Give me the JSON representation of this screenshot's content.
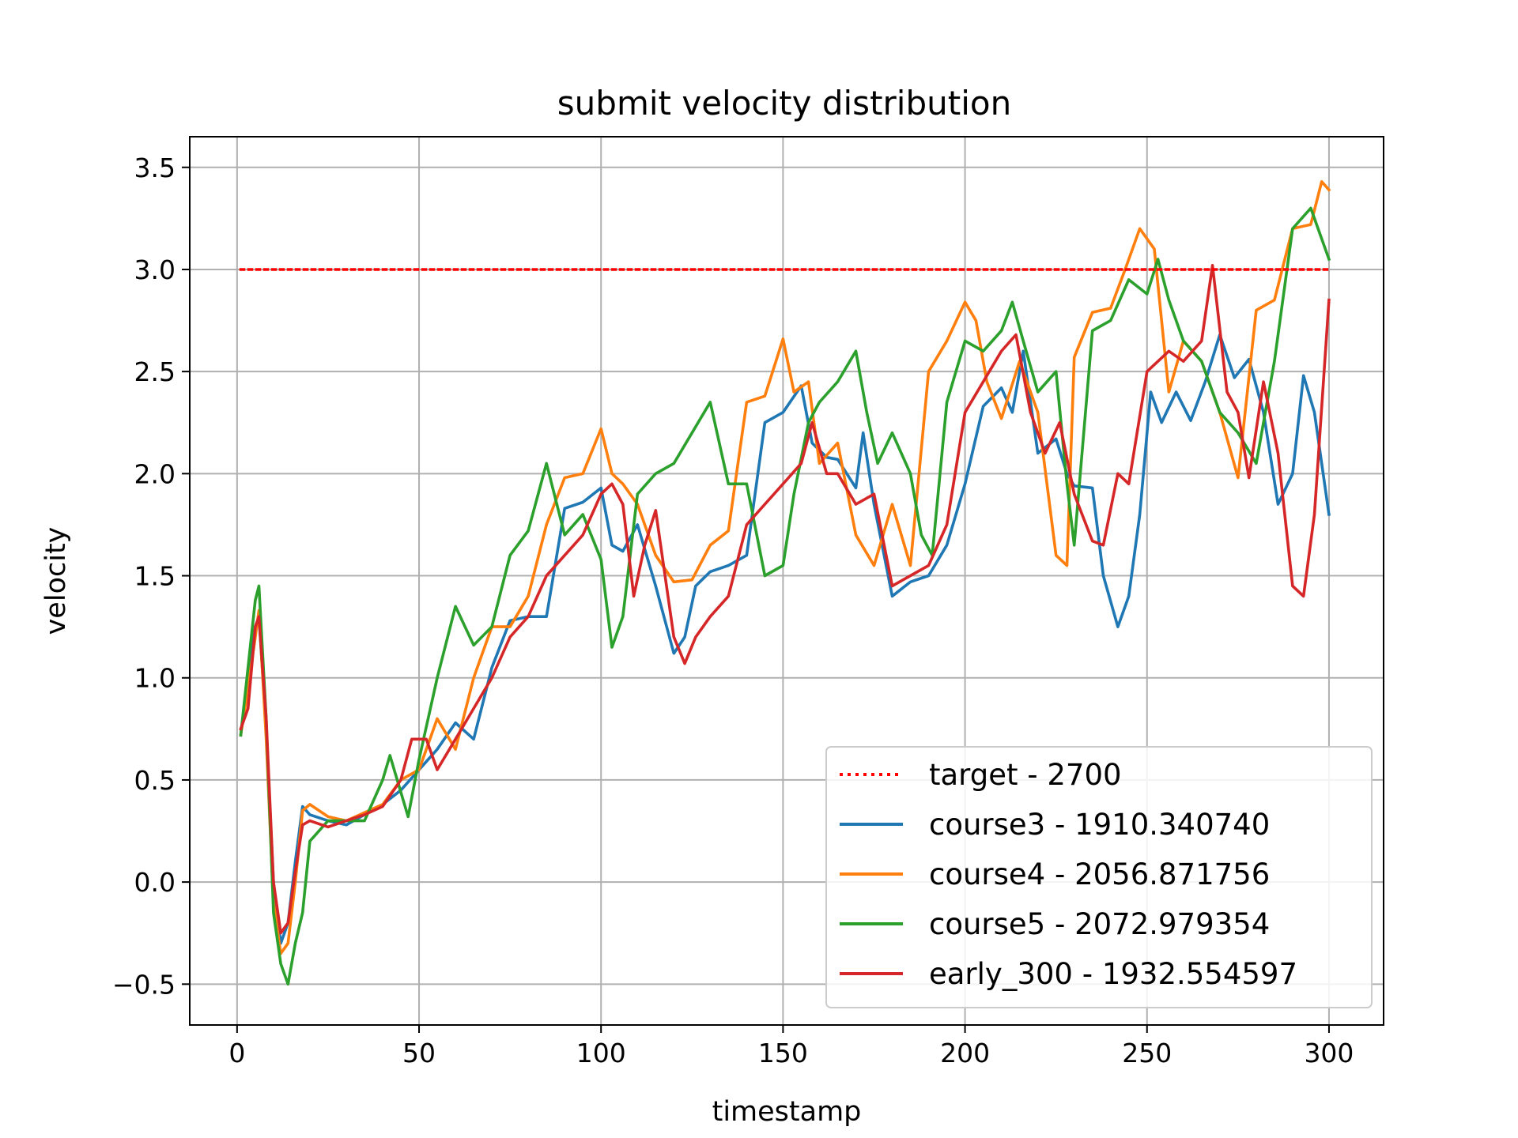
{
  "chart_data": {
    "type": "line",
    "title": "submit velocity distribution",
    "xlabel": "timestamp",
    "ylabel": "velocity",
    "xlim": [
      -13,
      315
    ],
    "ylim": [
      -0.7,
      3.65
    ],
    "xticks": [
      0,
      50,
      100,
      150,
      200,
      250,
      300
    ],
    "yticks": [
      -0.5,
      0.0,
      0.5,
      1.0,
      1.5,
      2.0,
      2.5,
      3.0,
      3.5
    ],
    "xtick_labels": [
      "0",
      "50",
      "100",
      "150",
      "200",
      "250",
      "300"
    ],
    "ytick_labels": [
      "−0.5",
      "0.0",
      "0.5",
      "1.0",
      "1.5",
      "2.0",
      "2.5",
      "3.0",
      "3.5"
    ],
    "grid": true,
    "legend_position": "lower-right",
    "series": [
      {
        "name": "target - 2700",
        "color": "#ff0000",
        "style": "dotted",
        "x": [
          1,
          300
        ],
        "y": [
          3.0,
          3.0
        ]
      },
      {
        "name": "course3 - 1910.340740",
        "color": "#1f77b4",
        "style": "solid",
        "x": [
          1,
          3,
          5,
          6,
          8,
          10,
          12,
          14,
          16,
          18,
          20,
          25,
          30,
          35,
          40,
          45,
          50,
          55,
          60,
          65,
          70,
          75,
          80,
          85,
          90,
          95,
          100,
          103,
          106,
          110,
          115,
          120,
          123,
          126,
          130,
          135,
          140,
          145,
          150,
          155,
          158,
          162,
          165,
          170,
          172,
          175,
          180,
          185,
          190,
          195,
          200,
          205,
          210,
          213,
          216,
          220,
          225,
          228,
          230,
          235,
          238,
          242,
          245,
          248,
          251,
          254,
          258,
          262,
          266,
          270,
          274,
          278,
          282,
          286,
          290,
          293,
          296,
          300
        ],
        "y": [
          0.72,
          1.0,
          1.25,
          1.3,
          0.75,
          0.0,
          -0.3,
          -0.2,
          0.1,
          0.37,
          0.33,
          0.3,
          0.28,
          0.33,
          0.38,
          0.45,
          0.55,
          0.65,
          0.78,
          0.7,
          1.05,
          1.28,
          1.3,
          1.3,
          1.83,
          1.86,
          1.93,
          1.65,
          1.62,
          1.75,
          1.45,
          1.12,
          1.2,
          1.45,
          1.52,
          1.55,
          1.6,
          2.25,
          2.3,
          2.43,
          2.15,
          2.08,
          2.07,
          1.93,
          2.2,
          1.85,
          1.4,
          1.47,
          1.5,
          1.65,
          1.95,
          2.33,
          2.42,
          2.3,
          2.6,
          2.1,
          2.17,
          2.0,
          1.94,
          1.93,
          1.5,
          1.25,
          1.4,
          1.8,
          2.4,
          2.25,
          2.4,
          2.26,
          2.45,
          2.68,
          2.47,
          2.56,
          2.3,
          1.85,
          2.0,
          2.48,
          2.3,
          1.8
        ]
      },
      {
        "name": "course4 - 2056.871756",
        "color": "#ff7f0e",
        "style": "solid",
        "x": [
          1,
          3,
          5,
          6,
          8,
          10,
          12,
          14,
          16,
          18,
          20,
          25,
          30,
          35,
          40,
          45,
          50,
          55,
          60,
          65,
          70,
          75,
          80,
          85,
          90,
          95,
          100,
          103,
          106,
          110,
          115,
          120,
          125,
          130,
          135,
          140,
          145,
          150,
          153,
          157,
          160,
          165,
          170,
          175,
          180,
          185,
          190,
          195,
          200,
          203,
          206,
          210,
          215,
          220,
          225,
          228,
          230,
          235,
          240,
          244,
          248,
          252,
          256,
          260,
          265,
          270,
          275,
          280,
          285,
          290,
          295,
          298,
          300
        ],
        "y": [
          0.72,
          0.95,
          1.2,
          1.33,
          0.7,
          -0.1,
          -0.35,
          -0.3,
          0.0,
          0.35,
          0.38,
          0.32,
          0.3,
          0.34,
          0.38,
          0.5,
          0.55,
          0.8,
          0.65,
          1.0,
          1.25,
          1.25,
          1.4,
          1.75,
          1.98,
          2.0,
          2.22,
          2.0,
          1.95,
          1.85,
          1.6,
          1.47,
          1.48,
          1.65,
          1.72,
          2.35,
          2.38,
          2.66,
          2.4,
          2.45,
          2.05,
          2.15,
          1.7,
          1.55,
          1.85,
          1.55,
          2.5,
          2.65,
          2.84,
          2.75,
          2.45,
          2.27,
          2.55,
          2.3,
          1.6,
          1.55,
          2.57,
          2.79,
          2.81,
          3.0,
          3.2,
          3.1,
          2.4,
          2.65,
          2.55,
          2.3,
          1.98,
          2.8,
          2.85,
          3.2,
          3.22,
          3.43,
          3.39
        ]
      },
      {
        "name": "course5 - 2072.979354",
        "color": "#2ca02c",
        "style": "solid",
        "x": [
          1,
          3,
          5,
          6,
          8,
          10,
          12,
          14,
          16,
          18,
          20,
          25,
          30,
          35,
          40,
          42,
          44,
          47,
          50,
          55,
          60,
          65,
          70,
          75,
          80,
          85,
          90,
          95,
          100,
          103,
          106,
          110,
          115,
          120,
          125,
          130,
          135,
          140,
          145,
          150,
          153,
          157,
          160,
          165,
          170,
          173,
          176,
          180,
          185,
          188,
          191,
          195,
          200,
          205,
          210,
          213,
          216,
          220,
          225,
          228,
          230,
          235,
          240,
          245,
          250,
          253,
          256,
          260,
          265,
          270,
          275,
          280,
          285,
          290,
          295,
          300
        ],
        "y": [
          0.72,
          1.05,
          1.38,
          1.45,
          0.8,
          -0.15,
          -0.4,
          -0.5,
          -0.3,
          -0.15,
          0.2,
          0.3,
          0.3,
          0.3,
          0.5,
          0.62,
          0.5,
          0.32,
          0.6,
          1.0,
          1.35,
          1.16,
          1.25,
          1.6,
          1.72,
          2.05,
          1.7,
          1.8,
          1.58,
          1.15,
          1.3,
          1.9,
          2.0,
          2.05,
          2.2,
          2.35,
          1.95,
          1.95,
          1.5,
          1.55,
          1.9,
          2.25,
          2.35,
          2.45,
          2.6,
          2.3,
          2.05,
          2.2,
          2.0,
          1.7,
          1.6,
          2.35,
          2.65,
          2.6,
          2.7,
          2.84,
          2.65,
          2.4,
          2.5,
          1.95,
          1.65,
          2.7,
          2.75,
          2.95,
          2.88,
          3.05,
          2.85,
          2.65,
          2.55,
          2.3,
          2.2,
          2.05,
          2.55,
          3.2,
          3.3,
          3.05
        ]
      },
      {
        "name": "early_300 - 1932.554597",
        "color": "#d62728",
        "style": "solid",
        "x": [
          1,
          3,
          5,
          6,
          8,
          10,
          12,
          14,
          16,
          18,
          20,
          25,
          30,
          35,
          40,
          45,
          48,
          52,
          55,
          60,
          65,
          70,
          75,
          80,
          85,
          90,
          95,
          100,
          103,
          106,
          109,
          112,
          115,
          120,
          123,
          126,
          130,
          135,
          140,
          145,
          150,
          155,
          158,
          162,
          165,
          170,
          175,
          180,
          185,
          190,
          195,
          200,
          205,
          210,
          214,
          218,
          222,
          226,
          230,
          235,
          238,
          242,
          245,
          250,
          253,
          256,
          260,
          265,
          268,
          272,
          275,
          278,
          282,
          286,
          290,
          293,
          296,
          300
        ],
        "y": [
          0.75,
          0.85,
          1.25,
          1.3,
          0.8,
          0.0,
          -0.25,
          -0.2,
          0.05,
          0.28,
          0.3,
          0.27,
          0.3,
          0.33,
          0.37,
          0.5,
          0.7,
          0.7,
          0.55,
          0.7,
          0.85,
          1.0,
          1.2,
          1.3,
          1.5,
          1.6,
          1.7,
          1.9,
          1.95,
          1.85,
          1.4,
          1.65,
          1.82,
          1.2,
          1.07,
          1.2,
          1.3,
          1.4,
          1.75,
          1.85,
          1.95,
          2.05,
          2.25,
          2.0,
          2.0,
          1.85,
          1.9,
          1.45,
          1.5,
          1.55,
          1.75,
          2.3,
          2.45,
          2.6,
          2.68,
          2.3,
          2.1,
          2.25,
          1.9,
          1.67,
          1.65,
          2.0,
          1.95,
          2.5,
          2.55,
          2.6,
          2.55,
          2.65,
          3.02,
          2.4,
          2.3,
          1.98,
          2.45,
          2.1,
          1.45,
          1.4,
          1.8,
          2.85
        ]
      }
    ]
  }
}
